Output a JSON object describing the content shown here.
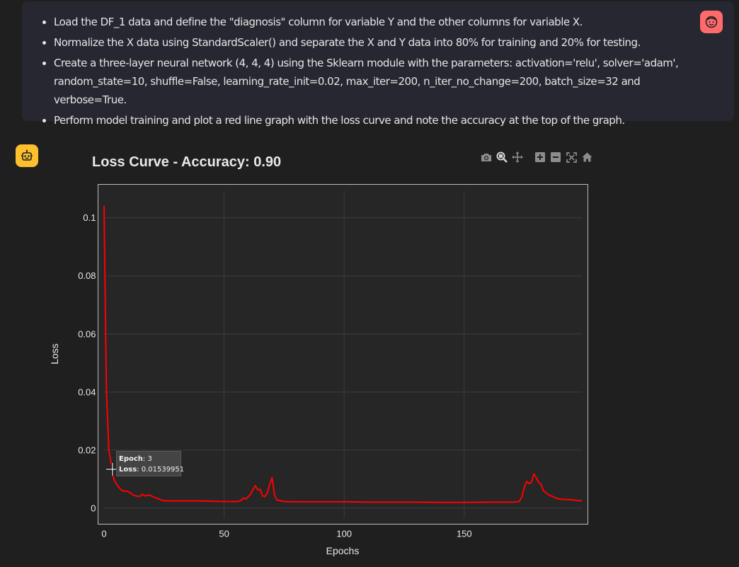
{
  "prompt": {
    "items": [
      "Load the DF_1 data and define the \"diagnosis\" column for variable Y and the other columns for variable X.",
      "Normalize the X data using StandardScaler() and separate the X and Y data into 80% for training and 20% for testing.",
      "Create a three-layer neural network (4, 4, 4) using the Sklearn module with the parameters: activation='relu', solver='adam', random_state=10, shuffle=False, learning_rate_init=0.02, max_iter=200, n_iter_no_change=200, batch_size=32 and verbose=True.",
      "Perform model training and plot a red line graph with the loss curve and note the accuracy at the top of the graph."
    ]
  },
  "icons": {
    "user_avatar": "smiley-face-icon",
    "bot_avatar": "robot-icon",
    "modebar": [
      "camera-icon",
      "zoom-icon",
      "pan-icon",
      "zoom-in-icon",
      "zoom-out-icon",
      "autoscale-icon",
      "home-icon"
    ]
  },
  "colors": {
    "line": "#ff0000",
    "user_avatar": "#ff6b6b",
    "bot_avatar": "#fdbf2d"
  },
  "tooltip": {
    "epoch_label": "Epoch",
    "epoch_value": ": 3",
    "loss_label": "Loss",
    "loss_value": ": 0.01539951"
  },
  "chart_data": {
    "type": "line",
    "title": "Loss Curve - Accuracy: 0.90",
    "xlabel": "Epochs",
    "ylabel": "Loss",
    "xlim": [
      -2.5,
      201.5
    ],
    "ylim": [
      -0.0055,
      0.1115
    ],
    "xticks": [
      0,
      50,
      100,
      150
    ],
    "yticks": [
      0,
      0.02,
      0.04,
      0.06,
      0.08,
      0.1
    ],
    "ytick_labels": [
      "0",
      "0.02",
      "0.04",
      "0.06",
      "0.08",
      "0.1"
    ],
    "grid": true,
    "series": [
      {
        "name": "",
        "x": [
          0,
          1,
          2,
          3,
          4,
          5,
          6,
          7,
          8,
          9,
          10,
          11,
          12,
          13,
          14,
          15,
          16,
          17,
          18,
          19,
          20,
          22,
          25,
          30,
          35,
          38,
          40,
          45,
          50,
          55,
          56,
          57,
          58,
          59,
          60,
          61,
          62,
          63,
          64,
          65,
          66,
          67,
          68,
          69,
          70,
          71,
          72,
          73,
          75,
          80,
          90,
          100,
          110,
          120,
          130,
          140,
          150,
          160,
          170,
          172,
          173,
          174,
          175,
          176,
          177,
          178,
          179,
          180,
          181,
          182,
          183,
          184,
          185,
          186,
          187,
          188,
          190,
          195,
          197,
          199
        ],
        "y": [
          0.104,
          0.04,
          0.02,
          0.0154,
          0.0102,
          0.0085,
          0.0074,
          0.0064,
          0.0059,
          0.0059,
          0.0058,
          0.0052,
          0.0046,
          0.0043,
          0.0041,
          0.0041,
          0.0048,
          0.0042,
          0.0044,
          0.0046,
          0.0041,
          0.0034,
          0.0025,
          0.0025,
          0.0025,
          0.0025,
          0.0025,
          0.0024,
          0.0023,
          0.0023,
          0.0024,
          0.0026,
          0.0035,
          0.0032,
          0.0039,
          0.0048,
          0.0064,
          0.0078,
          0.0063,
          0.0065,
          0.0043,
          0.004,
          0.0053,
          0.0083,
          0.0105,
          0.0045,
          0.0028,
          0.0027,
          0.0023,
          0.0022,
          0.0022,
          0.0022,
          0.0021,
          0.0021,
          0.0021,
          0.002,
          0.002,
          0.0021,
          0.0021,
          0.0022,
          0.0024,
          0.0039,
          0.0072,
          0.0092,
          0.0085,
          0.0089,
          0.0118,
          0.0105,
          0.0089,
          0.0082,
          0.006,
          0.0053,
          0.0047,
          0.0043,
          0.004,
          0.0035,
          0.0031,
          0.0029,
          0.0026,
          0.0026
        ]
      }
    ]
  }
}
